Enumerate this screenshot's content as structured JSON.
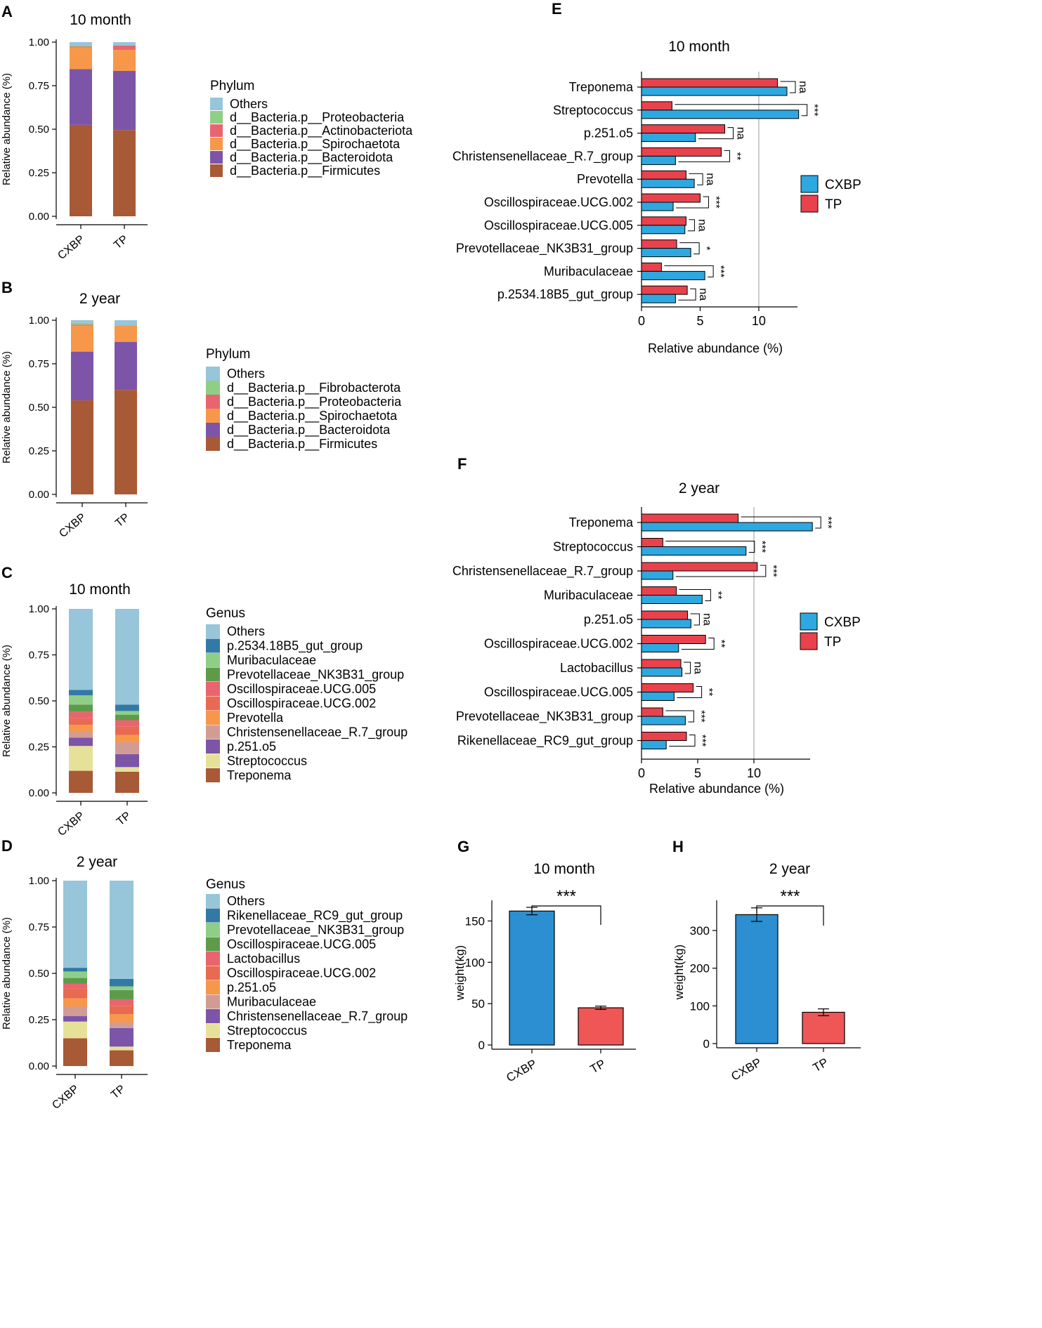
{
  "colors": {
    "cxbp": "#2ea8e0",
    "tp": "#e8424d",
    "bar_cxbp": "#2b8fd1",
    "bar_tp": "#ef5656",
    "phylum": {
      "Others": "#97c5da",
      "Fibrobacterota": "#8fce87",
      "Proteobacteria_A": "#8fce87",
      "Actinobacteriota": "#e8656f",
      "Proteobacteria_B": "#e8656f",
      "Spirochaetota": "#f7974a",
      "Bacteroidota": "#7c55a8",
      "Firmicutes": "#a85936"
    },
    "genus": [
      "#97c5da",
      "#3279a6",
      "#8fce87",
      "#5f9a4b",
      "#e8656f",
      "#e96a52",
      "#f7974a",
      "#d19c95",
      "#7c55a8",
      "#e6e199",
      "#a85936"
    ]
  },
  "chart_data": [
    {
      "panel": "A",
      "type": "stacked-bar",
      "title": "10 month",
      "ylabel": "Relative abundance (%)",
      "ylim": [
        0,
        1
      ],
      "yticks": [
        "0.00",
        "0.25",
        "0.50",
        "0.75",
        "1.00"
      ],
      "categories": [
        "CXBP",
        "TP"
      ],
      "legend_title": "Phylum",
      "series": [
        {
          "name": "d__Bacteria.p__Firmicutes",
          "color_key": "Firmicutes",
          "values": [
            0.525,
            0.495
          ]
        },
        {
          "name": "d__Bacteria.p__Bacteroidota",
          "color_key": "Bacteroidota",
          "values": [
            0.32,
            0.34
          ]
        },
        {
          "name": "d__Bacteria.p__Spirochaetota",
          "color_key": "Spirochaetota",
          "values": [
            0.125,
            0.12
          ]
        },
        {
          "name": "d__Bacteria.p__Actinobacteriota",
          "color_key": "Actinobacteriota",
          "values": [
            0.005,
            0.025
          ]
        },
        {
          "name": "d__Bacteria.p__Proteobacteria",
          "color_key": "Proteobacteria_A",
          "values": [
            0.005,
            0.0
          ]
        },
        {
          "name": "Others",
          "color_key": "Others",
          "values": [
            0.02,
            0.02
          ]
        }
      ]
    },
    {
      "panel": "B",
      "type": "stacked-bar",
      "title": "2 year",
      "ylabel": "Relative abundance (%)",
      "ylim": [
        0,
        1
      ],
      "yticks": [
        "0.00",
        "0.25",
        "0.50",
        "0.75",
        "1.00"
      ],
      "categories": [
        "CXBP",
        "TP"
      ],
      "legend_title": "Phylum",
      "series": [
        {
          "name": "d__Bacteria.p__Firmicutes",
          "color_key": "Firmicutes",
          "values": [
            0.54,
            0.6
          ]
        },
        {
          "name": "d__Bacteria.p__Bacteroidota",
          "color_key": "Bacteroidota",
          "values": [
            0.28,
            0.275
          ]
        },
        {
          "name": "d__Bacteria.p__Spirochaetota",
          "color_key": "Spirochaetota",
          "values": [
            0.15,
            0.095
          ]
        },
        {
          "name": "d__Bacteria.p__Proteobacteria",
          "color_key": "Proteobacteria_B",
          "values": [
            0.005,
            0.0
          ]
        },
        {
          "name": "d__Bacteria.p__Fibrobacterota",
          "color_key": "Fibrobacterota",
          "values": [
            0.01,
            0.0
          ]
        },
        {
          "name": "Others",
          "color_key": "Others",
          "values": [
            0.015,
            0.03
          ]
        }
      ]
    },
    {
      "panel": "C",
      "type": "stacked-bar",
      "title": "10 month",
      "ylabel": "Relative abundance (%)",
      "ylim": [
        0,
        1
      ],
      "yticks": [
        "0.00",
        "0.25",
        "0.50",
        "0.75",
        "1.00"
      ],
      "categories": [
        "CXBP",
        "TP"
      ],
      "legend_title": "Genus",
      "series": [
        {
          "name": "Treponema",
          "color_index": 10,
          "values": [
            0.12,
            0.115
          ]
        },
        {
          "name": "Streptococcus",
          "color_index": 9,
          "values": [
            0.135,
            0.025
          ]
        },
        {
          "name": "p.251.o5",
          "color_index": 8,
          "values": [
            0.045,
            0.07
          ]
        },
        {
          "name": "Christensenellaceae_R.7_group",
          "color_index": 7,
          "values": [
            0.03,
            0.065
          ]
        },
        {
          "name": "Prevotella",
          "color_index": 6,
          "values": [
            0.04,
            0.04
          ]
        },
        {
          "name": "Oscillospiraceae.UCG.002",
          "color_index": 5,
          "values": [
            0.035,
            0.045
          ]
        },
        {
          "name": "Oscillospiraceae.UCG.005",
          "color_index": 4,
          "values": [
            0.035,
            0.035
          ]
        },
        {
          "name": "Prevotellaceae_NK3B31_group",
          "color_index": 3,
          "values": [
            0.04,
            0.03
          ]
        },
        {
          "name": "Muribaculaceae",
          "color_index": 2,
          "values": [
            0.05,
            0.02
          ]
        },
        {
          "name": "p.2534.18B5_gut_group",
          "color_index": 1,
          "values": [
            0.03,
            0.035
          ]
        },
        {
          "name": "Others",
          "color_index": 0,
          "values": [
            0.44,
            0.51
          ]
        }
      ]
    },
    {
      "panel": "D",
      "type": "stacked-bar",
      "title": "2 year",
      "ylabel": "Relative abundance (%)",
      "ylim": [
        0,
        1
      ],
      "yticks": [
        "0.00",
        "0.25",
        "0.50",
        "0.75",
        "1.00"
      ],
      "categories": [
        "CXBP",
        "TP"
      ],
      "legend_title": "Genus",
      "series": [
        {
          "name": "Treponema",
          "color_index": 10,
          "values": [
            0.15,
            0.085
          ]
        },
        {
          "name": "Streptococcus",
          "color_index": 9,
          "values": [
            0.09,
            0.02
          ]
        },
        {
          "name": "Christensenellaceae_R.7_group",
          "color_index": 8,
          "values": [
            0.03,
            0.1
          ]
        },
        {
          "name": "Muribaculaceae",
          "color_index": 7,
          "values": [
            0.05,
            0.03
          ]
        },
        {
          "name": "p.251.o5",
          "color_index": 6,
          "values": [
            0.045,
            0.045
          ]
        },
        {
          "name": "Oscillospiraceae.UCG.002",
          "color_index": 5,
          "values": [
            0.055,
            0.045
          ]
        },
        {
          "name": "Lactobacillus",
          "color_index": 4,
          "values": [
            0.025,
            0.035
          ]
        },
        {
          "name": "Oscillospiraceae.UCG.005",
          "color_index": 3,
          "values": [
            0.03,
            0.05
          ]
        },
        {
          "name": "Prevotellaceae_NK3B31_group",
          "color_index": 2,
          "values": [
            0.035,
            0.02
          ]
        },
        {
          "name": "Rikenellaceae_RC9_gut_group",
          "color_index": 1,
          "values": [
            0.02,
            0.04
          ]
        },
        {
          "name": "Others",
          "color_index": 0,
          "values": [
            0.47,
            0.53
          ]
        }
      ]
    },
    {
      "panel": "E",
      "type": "grouped-hbar",
      "title": "10 month",
      "xlabel": "Relative abundance (%)",
      "xlim": [
        0,
        13.3
      ],
      "xticks": [
        0,
        5,
        10
      ],
      "reference_line": 10,
      "legend": [
        "CXBP",
        "TP"
      ],
      "categories": [
        "Treponema",
        "Streptococcus",
        "p.251.o5",
        "Christensenellaceae_R.7_group",
        "Prevotella",
        "Oscillospiraceae.UCG.002",
        "Oscillospiraceae.UCG.005",
        "Prevotellaceae_NK3B31_group",
        "Muribaculaceae",
        "p.2534.18B5_gut_group"
      ],
      "series": [
        {
          "name": "TP",
          "values": [
            11.6,
            2.6,
            7.1,
            6.8,
            3.8,
            5.0,
            3.8,
            3.0,
            1.7,
            3.9
          ]
        },
        {
          "name": "CXBP",
          "values": [
            12.4,
            13.4,
            4.6,
            2.9,
            4.5,
            2.7,
            3.7,
            4.2,
            5.4,
            2.9
          ]
        }
      ],
      "significance": [
        "na",
        "***",
        "na",
        "**",
        "na",
        "***",
        "na",
        "*",
        "***",
        "na"
      ]
    },
    {
      "panel": "F",
      "type": "grouped-hbar",
      "title": "2 year",
      "xlabel": "Relative abundance (%)",
      "xlim": [
        0,
        15
      ],
      "xticks": [
        0,
        5,
        10
      ],
      "reference_line": 10,
      "legend": [
        "CXBP",
        "TP"
      ],
      "categories": [
        "Treponema",
        "Streptococcus",
        "Christensenellaceae_R.7_group",
        "Muribaculaceae",
        "p.251.o5",
        "Oscillospiraceae.UCG.002",
        "Lactobacillus",
        "Oscillospiraceae.UCG.005",
        "Prevotellaceae_NK3B31_group",
        "Rikenellaceae_RC9_gut_group"
      ],
      "series": [
        {
          "name": "TP",
          "values": [
            8.6,
            1.9,
            10.3,
            3.1,
            4.1,
            5.7,
            3.5,
            4.6,
            1.9,
            4.0
          ]
        },
        {
          "name": "CXBP",
          "values": [
            15.2,
            9.3,
            2.8,
            5.4,
            4.4,
            3.3,
            3.6,
            2.9,
            3.9,
            2.2
          ]
        }
      ],
      "significance": [
        "***",
        "***",
        "***",
        "**",
        "na",
        "**",
        "na",
        "**",
        "***",
        "***"
      ]
    },
    {
      "panel": "G",
      "type": "bar",
      "title": "10 month",
      "ylabel": "weight(kg)",
      "ylim": [
        0,
        175
      ],
      "yticks": [
        0,
        50,
        100,
        150
      ],
      "categories": [
        "CXBP",
        "TP"
      ],
      "values": [
        162,
        45
      ],
      "errors": [
        4.5,
        2
      ],
      "significance": "***"
    },
    {
      "panel": "H",
      "type": "bar",
      "title": "2 year",
      "ylabel": "weight(kg)",
      "ylim": [
        0,
        380
      ],
      "yticks": [
        0,
        100,
        200,
        300
      ],
      "categories": [
        "CXBP",
        "TP"
      ],
      "values": [
        342,
        83
      ],
      "errors": [
        18,
        9
      ],
      "significance": "***"
    }
  ]
}
